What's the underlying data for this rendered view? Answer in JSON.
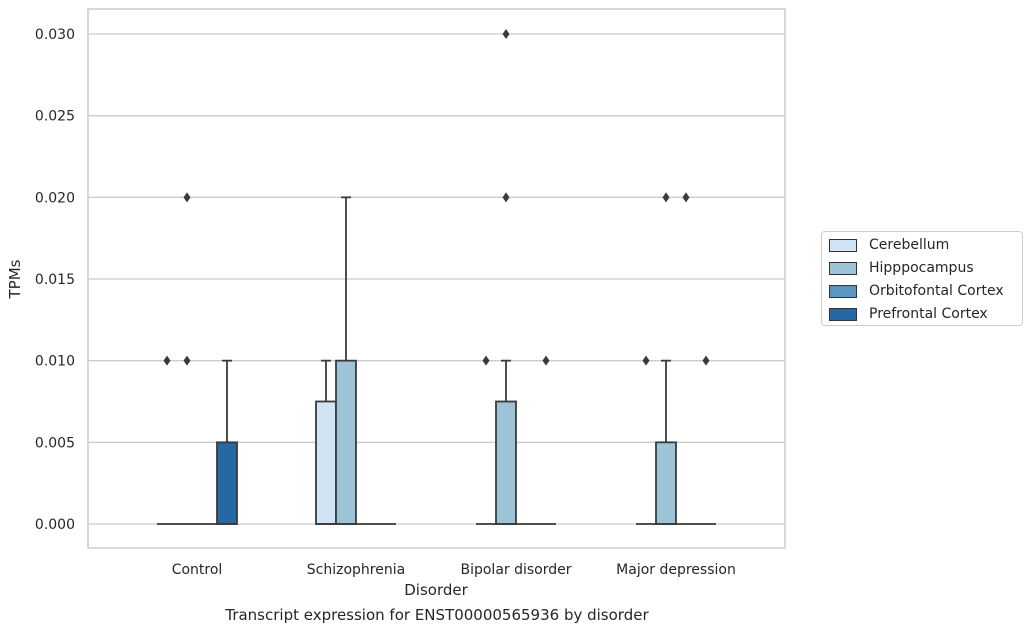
{
  "chart_data": {
    "type": "box",
    "xlabel": "Disorder",
    "ylabel": "TPMs",
    "ylim": [
      -0.0015,
      0.0315
    ],
    "yticks": [
      "0.000",
      "0.005",
      "0.010",
      "0.015",
      "0.020",
      "0.025",
      "0.030"
    ],
    "categories": [
      "Control",
      "Schizophrenia",
      "Bipolar disorder",
      "Major depression"
    ],
    "grid": true,
    "legend_position": "right",
    "caption": "Transcript expression for ENST00000565936 by disorder",
    "series": [
      {
        "name": "Cerebellum",
        "color": "#d2e3f3",
        "boxes": [
          {
            "category": "Control",
            "q1": 0,
            "median": 0,
            "q3": 0,
            "whisker_low": 0,
            "whisker_high": 0,
            "outliers": [
              0.01
            ]
          },
          {
            "category": "Schizophrenia",
            "q1": 0,
            "median": 0,
            "q3": 0.0075,
            "whisker_low": 0,
            "whisker_high": 0.01,
            "outliers": []
          },
          {
            "category": "Bipolar disorder",
            "q1": 0,
            "median": 0,
            "q3": 0,
            "whisker_low": 0,
            "whisker_high": 0,
            "outliers": [
              0.01
            ]
          },
          {
            "category": "Major depression",
            "q1": 0,
            "median": 0,
            "q3": 0,
            "whisker_low": 0,
            "whisker_high": 0,
            "outliers": [
              0.01
            ]
          }
        ]
      },
      {
        "name": "Hipppocampus",
        "color": "#9cc3d8",
        "boxes": [
          {
            "category": "Control",
            "q1": 0,
            "median": 0,
            "q3": 0,
            "whisker_low": 0,
            "whisker_high": 0,
            "outliers": [
              0.01,
              0.02
            ]
          },
          {
            "category": "Schizophrenia",
            "q1": 0,
            "median": 0,
            "q3": 0.01,
            "whisker_low": 0,
            "whisker_high": 0.02,
            "outliers": []
          },
          {
            "category": "Bipolar disorder",
            "q1": 0,
            "median": 0,
            "q3": 0.0075,
            "whisker_low": 0,
            "whisker_high": 0.01,
            "outliers": [
              0.02,
              0.03
            ]
          },
          {
            "category": "Major depression",
            "q1": 0,
            "median": 0,
            "q3": 0.005,
            "whisker_low": 0,
            "whisker_high": 0.01,
            "outliers": [
              0.02
            ]
          }
        ]
      },
      {
        "name": "Orbitofontal Cortex",
        "color": "#5b96c2",
        "boxes": [
          {
            "category": "Control",
            "q1": 0,
            "median": 0,
            "q3": 0,
            "whisker_low": 0,
            "whisker_high": 0,
            "outliers": []
          },
          {
            "category": "Schizophrenia",
            "q1": 0,
            "median": 0,
            "q3": 0,
            "whisker_low": 0,
            "whisker_high": 0,
            "outliers": []
          },
          {
            "category": "Bipolar disorder",
            "q1": 0,
            "median": 0,
            "q3": 0,
            "whisker_low": 0,
            "whisker_high": 0,
            "outliers": []
          },
          {
            "category": "Major depression",
            "q1": 0,
            "median": 0,
            "q3": 0,
            "whisker_low": 0,
            "whisker_high": 0,
            "outliers": [
              0.02
            ]
          }
        ]
      },
      {
        "name": "Prefrontal Cortex",
        "color": "#2767a5",
        "boxes": [
          {
            "category": "Control",
            "q1": 0,
            "median": 0,
            "q3": 0.005,
            "whisker_low": 0,
            "whisker_high": 0.01,
            "outliers": []
          },
          {
            "category": "Schizophrenia",
            "q1": 0,
            "median": 0,
            "q3": 0,
            "whisker_low": 0,
            "whisker_high": 0,
            "outliers": []
          },
          {
            "category": "Bipolar disorder",
            "q1": 0,
            "median": 0,
            "q3": 0,
            "whisker_low": 0,
            "whisker_high": 0,
            "outliers": [
              0.01
            ]
          },
          {
            "category": "Major depression",
            "q1": 0,
            "median": 0,
            "q3": 0,
            "whisker_low": 0,
            "whisker_high": 0,
            "outliers": [
              0.01
            ]
          }
        ]
      }
    ]
  }
}
